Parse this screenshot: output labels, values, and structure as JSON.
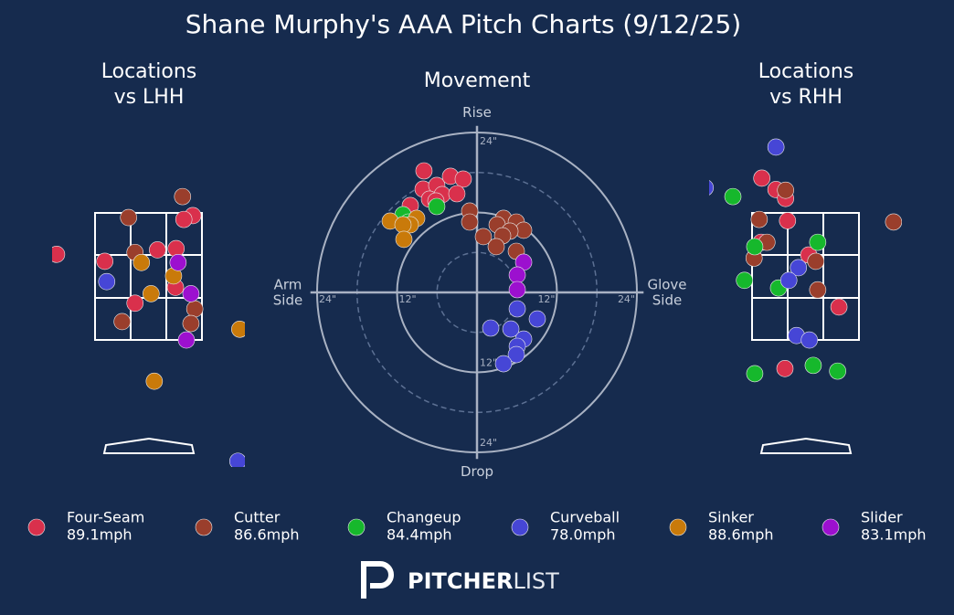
{
  "title": "Shane Murphy's AAA Pitch Charts (9/12/25)",
  "legend": [
    {
      "name": "Four-Seam",
      "color": "#d9304c",
      "velocity": {
        "value": 89.1,
        "label": "89.1mph"
      }
    },
    {
      "name": "Cutter",
      "color": "#9a3e2c",
      "velocity": {
        "value": 86.6,
        "label": "86.6mph"
      }
    },
    {
      "name": "Changeup",
      "color": "#16b82c",
      "velocity": {
        "value": 84.4,
        "label": "84.4mph"
      }
    },
    {
      "name": "Curveball",
      "color": "#4646d6",
      "velocity": {
        "value": 78.0,
        "label": "78.0mph"
      }
    },
    {
      "name": "Sinker",
      "color": "#c97a0a",
      "velocity": {
        "value": 88.6,
        "label": "88.6mph"
      }
    },
    {
      "name": "Slider",
      "color": "#9c10cf",
      "velocity": {
        "value": 83.1,
        "label": "83.1mph"
      }
    }
  ],
  "brand": [
    "PITCHER",
    "LIST"
  ],
  "chart_data": [
    {
      "type": "scatter",
      "title": [
        "Locations",
        "vs LHH"
      ],
      "xlim": [
        -1.5,
        1.5
      ],
      "ylim": [
        -0.5,
        5.0
      ],
      "series": [
        {
          "x": [
            -1.43,
            0.69,
            0.55,
            -0.68,
            0.14,
            0.43,
            0.42,
            -0.21
          ],
          "y": [
            2.85,
            3.46,
            3.4,
            2.74,
            2.92,
            2.94,
            2.33,
            2.08
          ]
        },
        {
          "x": [
            0.53,
            -0.31,
            -0.21,
            0.72,
            0.66,
            -0.41
          ],
          "y": [
            3.76,
            3.43,
            2.88,
            1.99,
            1.76,
            1.79
          ]
        },
        {
          "x": [],
          "y": []
        },
        {
          "x": [
            -0.65,
            1.39
          ],
          "y": [
            2.42,
            -0.41
          ]
        },
        {
          "x": [
            -0.11,
            0.39,
            0.04,
            1.42,
            0.09
          ],
          "y": [
            2.72,
            2.51,
            2.23,
            1.67,
            0.85
          ]
        },
        {
          "x": [
            0.46,
            0.66,
            0.59
          ],
          "y": [
            2.72,
            2.23,
            1.5
          ]
        }
      ]
    },
    {
      "type": "movement",
      "title": [
        "Movement"
      ],
      "xlim": [
        -25,
        25
      ],
      "ylim": [
        -25,
        25
      ],
      "top_label": "Rise",
      "bottom_label": "Drop",
      "left_label": [
        "Arm",
        "Side"
      ],
      "right_label": [
        "Glove",
        "Side"
      ],
      "rings": [
        {
          "r": 6,
          "dashed": true
        },
        {
          "r": 12,
          "dashed": false
        },
        {
          "r": 18,
          "dashed": true
        },
        {
          "r": 24,
          "dashed": false
        }
      ],
      "xticks": [
        {
          "value": -24,
          "label": "24\""
        },
        {
          "value": -12,
          "label": "12\""
        },
        {
          "value": 12,
          "label": "12\""
        },
        {
          "value": 24,
          "label": "24\""
        }
      ],
      "yticks": [
        {
          "value": 24,
          "label": "24\""
        },
        {
          "value": -12,
          "label": "12\""
        },
        {
          "value": -24,
          "label": "24\""
        }
      ],
      "series": [
        {
          "x": [
            -7.96,
            -8.09,
            -6.04,
            -3.98,
            -2.06,
            -7.13,
            -5.21,
            -3.02,
            -10.01,
            -6.17
          ],
          "y": [
            18.24,
            15.5,
            16.05,
            17.42,
            17.01,
            13.99,
            14.68,
            14.81,
            13.03,
            13.72
          ]
        },
        {
          "x": [
            -1.1,
            3.98,
            5.9,
            7.0,
            -1.1,
            0.96,
            3.02,
            4.94,
            3.84,
            2.88,
            5.9
          ],
          "y": [
            12.21,
            11.11,
            10.56,
            9.33,
            10.56,
            8.37,
            10.15,
            9.19,
            8.5,
            6.86,
            6.17
          ]
        },
        {
          "x": [
            -6.04,
            -11.11,
            -10.29
          ],
          "y": [
            12.89,
            11.66,
            10.56
          ]
        },
        {
          "x": [
            6.04,
            9.05,
            2.06,
            5.08,
            7.0,
            6.04,
            5.9,
            3.98
          ],
          "y": [
            -2.47,
            -3.98,
            -5.35,
            -5.49,
            -7.0,
            -8.09,
            -9.33,
            -10.7
          ]
        },
        {
          "x": [
            -13.03,
            -9.05,
            -10.01,
            -11.11,
            -10.97
          ],
          "y": [
            10.7,
            11.11,
            10.15,
            10.15,
            7.96
          ]
        },
        {
          "x": [
            7.0,
            6.04,
            6.04
          ],
          "y": [
            4.53,
            2.61,
            0.41
          ]
        }
      ]
    },
    {
      "type": "scatter",
      "title": [
        "Locations",
        "vs RHH"
      ],
      "xlim": [
        -1.5,
        1.5
      ],
      "ylim": [
        -0.5,
        5.0
      ],
      "series": [
        {
          "x": [
            -0.68,
            -0.46,
            -0.31,
            -0.28,
            0.05,
            0.52,
            -0.32,
            -0.69
          ],
          "y": [
            4.05,
            3.87,
            3.73,
            3.38,
            2.84,
            2.02,
            1.05,
            3.04
          ]
        },
        {
          "x": [
            -0.31,
            -0.72,
            -0.6,
            -0.8,
            0.16,
            0.19,
            1.37
          ],
          "y": [
            3.86,
            3.4,
            3.04,
            2.79,
            2.74,
            2.29,
            3.36
          ]
        },
        {
          "x": [
            -1.13,
            -0.79,
            0.19,
            -0.95,
            -0.42,
            -0.79,
            0.12,
            0.5
          ],
          "y": [
            3.76,
            2.97,
            3.04,
            2.44,
            2.32,
            0.97,
            1.1,
            1.01
          ]
        },
        {
          "x": [
            -0.46,
            -1.56,
            -0.11,
            -0.26,
            -0.14,
            0.06
          ],
          "y": [
            4.54,
            3.9,
            2.64,
            2.44,
            1.57,
            1.5
          ]
        },
        {
          "x": [],
          "y": []
        },
        {
          "x": [],
          "y": []
        }
      ]
    }
  ]
}
